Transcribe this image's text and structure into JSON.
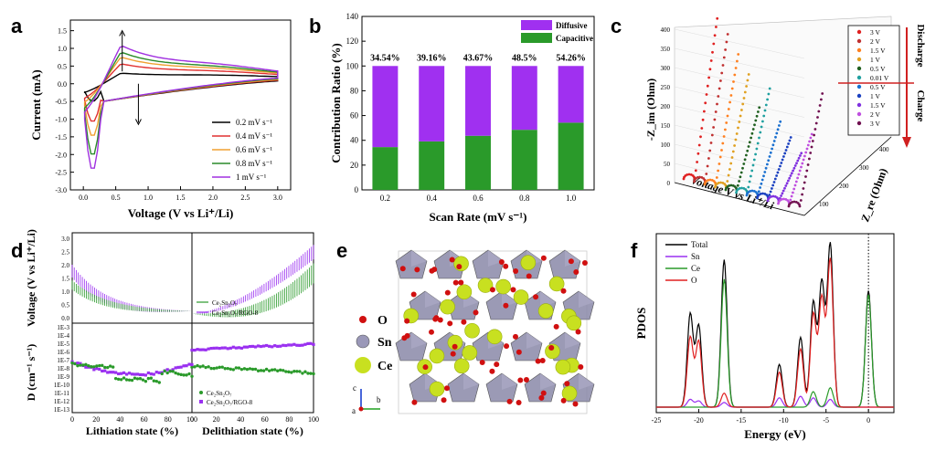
{
  "panels": {
    "a": {
      "label": "a",
      "chart_data": {
        "type": "line",
        "xlabel": "Voltage (V vs Li⁺/Li)",
        "ylabel": "Current (mA)",
        "xlim": [
          -0.2,
          3.2
        ],
        "ylim": [
          -3.0,
          1.8
        ],
        "xticks": [
          "0.0",
          "0.5",
          "1.0",
          "1.5",
          "2.0",
          "2.5",
          "3.0"
        ],
        "yticks": [
          "-3.0",
          "-2.5",
          "-2.0",
          "-1.5",
          "-1.0",
          "-0.5",
          "0.0",
          "0.5",
          "1.0",
          "1.5"
        ],
        "legend": [
          "0.2 mV s⁻¹",
          "0.4 mV s⁻¹",
          "0.6 mV s⁻¹",
          "0.8 mV s⁻¹",
          "1 mV s⁻¹"
        ],
        "legend_position": "bottom-right",
        "colors": [
          "#000000",
          "#e03030",
          "#f0a030",
          "#2a8a2a",
          "#a030e0"
        ],
        "series": [
          {
            "name": "0.2 mV s⁻¹",
            "peak_anodic": 0.32,
            "peak_cathodic": -0.75,
            "end_top": 0.2,
            "end_bottom": 0.08
          },
          {
            "name": "0.4 mV s⁻¹",
            "peak_anodic": 0.6,
            "peak_cathodic": -1.25,
            "end_top": 0.25,
            "end_bottom": 0.1
          },
          {
            "name": "0.6 mV s⁻¹",
            "peak_anodic": 0.8,
            "peak_cathodic": -1.6,
            "end_top": 0.28,
            "end_bottom": 0.12
          },
          {
            "name": "0.8 mV s⁻¹",
            "peak_anodic": 0.95,
            "peak_cathodic": -2.1,
            "end_top": 0.3,
            "end_bottom": 0.14
          },
          {
            "name": "1 mV s⁻¹",
            "peak_anodic": 1.15,
            "peak_cathodic": -2.45,
            "end_top": 0.32,
            "end_bottom": 0.16
          }
        ]
      }
    },
    "b": {
      "label": "b",
      "chart_data": {
        "type": "bar",
        "xlabel": "Scan Rate (mV s⁻¹)",
        "ylabel": "Contribution Ratio (%)",
        "ylim": [
          0,
          140
        ],
        "yticks": [
          "0",
          "20",
          "40",
          "60",
          "80",
          "100",
          "120",
          "140"
        ],
        "categories": [
          "0.2",
          "0.4",
          "0.6",
          "0.8",
          "1.0"
        ],
        "series": [
          {
            "name": "Capacitive",
            "values": [
              34.54,
              39.16,
              43.67,
              48.5,
              54.26
            ],
            "color": "#2a9a2a"
          },
          {
            "name": "Diffusive",
            "values": [
              65.46,
              60.84,
              56.33,
              51.5,
              45.74
            ],
            "color": "#a030f0"
          }
        ],
        "bar_labels": [
          "34.54%",
          "39.16%",
          "43.67%",
          "48.5%",
          "54.26%"
        ],
        "legend_position": "top-right"
      }
    },
    "c": {
      "label": "c",
      "chart_data": {
        "type": "line",
        "zlabel": "-Z_im (Ohm)",
        "ylabel": "Z_re (Ohm)",
        "xlabel": "Voltage  V vs Li⁺/Li",
        "zticks": [
          "0",
          "50",
          "100",
          "150",
          "200",
          "250",
          "300",
          "350",
          "400"
        ],
        "yticks": [
          "100",
          "200",
          "300",
          "400"
        ],
        "legend": [
          "3 V",
          "2 V",
          "1.5 V",
          "1 V",
          "0.5 V",
          "0.01 V",
          "0.5 V",
          "1 V",
          "1.5 V",
          "2 V",
          "3 V"
        ],
        "legend_colors": [
          "#e02020",
          "#c03030",
          "#ff8020",
          "#e0a020",
          "#206020",
          "#20a0a0",
          "#1a70d0",
          "#1a40c0",
          "#8030e0",
          "#c050e0",
          "#701050"
        ],
        "discharge_label": "Discharge",
        "charge_label": "Charge"
      }
    },
    "d": {
      "label": "d",
      "chart_data": {
        "type": "scatter",
        "ylabel_top": "Voltage (V vs Li⁺/Li)",
        "ylabel_bottom": "D (cm⁻¹ s⁻¹)",
        "xlabel_left": "Lithiation state (%)",
        "xlabel_right": "Delithiation state (%)",
        "xticks": [
          "0",
          "20",
          "40",
          "60",
          "80",
          "100"
        ],
        "yticks_top": [
          "0.0",
          "0.5",
          "1.0",
          "1.5",
          "2.0",
          "2.5",
          "3.0"
        ],
        "yticks_bottom": [
          "1E-13",
          "1E-12",
          "1E-11",
          "1E-10",
          "1E-9",
          "1E-8",
          "1E-7",
          "1E-6",
          "1E-5",
          "1E-4",
          "1E-3"
        ],
        "legend": [
          "Ce₂Sn₂O₇",
          "Ce₂Sn₂O₇/RGO-8"
        ],
        "colors": [
          "#2a9a2a",
          "#9a30f0"
        ]
      }
    },
    "e": {
      "label": "e",
      "legend": [
        {
          "name": "O",
          "color": "#d01010"
        },
        {
          "name": "Sn",
          "color": "#9a98b8"
        },
        {
          "name": "Ce",
          "color": "#c8e020"
        }
      ],
      "axes": {
        "c": "c",
        "b": "b",
        "a": "a"
      }
    },
    "f": {
      "label": "f",
      "chart_data": {
        "type": "line",
        "xlabel": "Energy (eV)",
        "ylabel": "PDOS",
        "xlim": [
          -25,
          3
        ],
        "xticks": [
          "-25",
          "-20",
          "-15",
          "-10",
          "-5",
          "0"
        ],
        "legend": [
          "Total",
          "Sn",
          "Ce",
          "O"
        ],
        "colors": [
          "#000000",
          "#9a30f0",
          "#2a9a2a",
          "#e02020"
        ],
        "legend_position": "top-left"
      }
    }
  }
}
